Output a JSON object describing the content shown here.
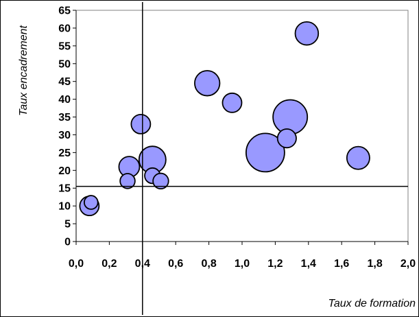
{
  "chart_data": {
    "type": "scatter",
    "variant": "bubble",
    "xlabel": "Taux de formation",
    "ylabel": "Taux encadrement",
    "xlim": [
      0,
      2.0
    ],
    "ylim": [
      0,
      65
    ],
    "x_ticks": [
      "0,0",
      "0,2",
      "0,4",
      "0,6",
      "0,8",
      "1,0",
      "1,2",
      "1,4",
      "1,6",
      "1,8",
      "2,0"
    ],
    "y_ticks": [
      "0",
      "5",
      "10",
      "15",
      "20",
      "25",
      "30",
      "35",
      "40",
      "45",
      "50",
      "55",
      "60",
      "65"
    ],
    "grid": false,
    "legend": "none",
    "reference_lines": {
      "x": 0.4,
      "y": 15.5
    },
    "bubble_color": "#9999ff",
    "bubble_edge": "#000000",
    "points": [
      {
        "x": 0.09,
        "y": 11.0,
        "size": 1
      },
      {
        "x": 0.08,
        "y": 10.0,
        "size": 2
      },
      {
        "x": 0.31,
        "y": 17.0,
        "size": 1.2
      },
      {
        "x": 0.32,
        "y": 21.0,
        "size": 2.3
      },
      {
        "x": 0.39,
        "y": 33.0,
        "size": 2
      },
      {
        "x": 0.46,
        "y": 23.0,
        "size": 3.9
      },
      {
        "x": 0.46,
        "y": 18.5,
        "size": 1.3
      },
      {
        "x": 0.51,
        "y": 17.0,
        "size": 1.3
      },
      {
        "x": 0.79,
        "y": 44.5,
        "size": 3.4
      },
      {
        "x": 0.94,
        "y": 39.0,
        "size": 2
      },
      {
        "x": 1.14,
        "y": 25.0,
        "size": 8
      },
      {
        "x": 1.27,
        "y": 29.0,
        "size": 1.9
      },
      {
        "x": 1.29,
        "y": 35.0,
        "size": 6.4
      },
      {
        "x": 1.39,
        "y": 58.5,
        "size": 2.9
      },
      {
        "x": 1.7,
        "y": 23.5,
        "size": 2.8
      }
    ]
  }
}
